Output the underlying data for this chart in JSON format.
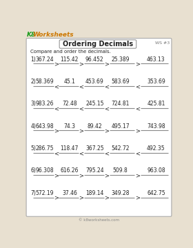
{
  "title": "Ordering Decimals",
  "ws_label": "WS #3",
  "instruction": "Compare and order the decimals.",
  "footer": "© k8worksheets.com",
  "problems": [
    {
      "num": "1)",
      "values": [
        "367.24",
        "115.42",
        "96.452",
        "25.389",
        "463.13"
      ],
      "symbol": ">"
    },
    {
      "num": "2)",
      "values": [
        "58.369",
        "45.1",
        "453.69",
        "583.69",
        "353.69"
      ],
      "symbol": "<"
    },
    {
      "num": "3)",
      "values": [
        "983.26",
        "72.48",
        "245.15",
        "724.81",
        "425.81"
      ],
      "symbol": "<"
    },
    {
      "num": "4)",
      "values": [
        "643.98",
        "74.3",
        "89.42",
        "495.17",
        "743.98"
      ],
      "symbol": ">"
    },
    {
      "num": "5)",
      "values": [
        "286.75",
        "118.47",
        "367.25",
        "542.72",
        "492.35"
      ],
      "symbol": "<"
    },
    {
      "num": "6)",
      "values": [
        "96.308",
        "616.26",
        "795.24",
        "509.8",
        "963.08"
      ],
      "symbol": ">"
    },
    {
      "num": "7)",
      "values": [
        "572.19",
        "37.46",
        "189.14",
        "349.28",
        "642.75"
      ],
      "symbol": ">"
    }
  ],
  "bg_color": "#e8e0d0",
  "white_box_color": "#ffffff",
  "line_color": "#888888",
  "text_color": "#222222",
  "logo_k_color": "#1a9a1a",
  "logo_8_color": "#1a9a1a",
  "logo_w_color": "#cc7700",
  "title_border_color": "#888888",
  "ws_label_color": "#777777",
  "footer_color": "#888888"
}
